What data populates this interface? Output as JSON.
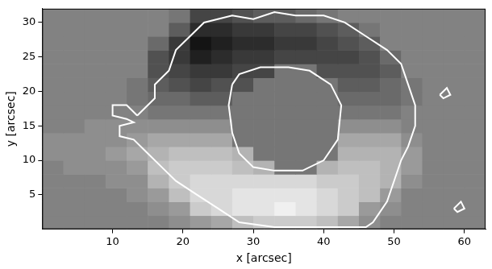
{
  "chart_data": {
    "type": "heatmap",
    "xlabel": "x [arcsec]",
    "ylabel": "y [arcsec]",
    "xlim": [
      0,
      63
    ],
    "ylim": [
      0,
      32
    ],
    "xticks": [
      10,
      20,
      30,
      40,
      50,
      60
    ],
    "yticks": [
      5,
      10,
      15,
      20,
      25,
      30
    ],
    "grid": false,
    "value_range": [
      -9,
      9
    ],
    "cells": [
      [
        0,
        0,
        0,
        0,
        0,
        0,
        1,
        2,
        3,
        5,
        6,
        6,
        6,
        5,
        3,
        1,
        0,
        0,
        0,
        0,
        0
      ],
      [
        0,
        0,
        0,
        0,
        0,
        1,
        2,
        6,
        7,
        8,
        8,
        9,
        8,
        7,
        6,
        2,
        1,
        0,
        0,
        0,
        0
      ],
      [
        0,
        0,
        0,
        0,
        1,
        2,
        5,
        7,
        7,
        8,
        8,
        8,
        8,
        7,
        6,
        5,
        2,
        0,
        0,
        0,
        0
      ],
      [
        0,
        0,
        0,
        1,
        1,
        4,
        6,
        7,
        7,
        7,
        7,
        7,
        7,
        6,
        6,
        5,
        4,
        1,
        0,
        0,
        0
      ],
      [
        0,
        1,
        1,
        1,
        2,
        5,
        6,
        6,
        6,
        5,
        4,
        -1,
        -1,
        4,
        5,
        5,
        4,
        2,
        0,
        0,
        0
      ],
      [
        1,
        1,
        1,
        2,
        3,
        4,
        5,
        5,
        5,
        4,
        -1,
        -1,
        -1,
        -1,
        4,
        4,
        4,
        2,
        0,
        0,
        0
      ],
      [
        1,
        1,
        1,
        1,
        2,
        3,
        3,
        3,
        3,
        -1,
        -1,
        -1,
        -1,
        -1,
        3,
        3,
        3,
        1,
        0,
        0,
        0
      ],
      [
        0,
        0,
        1,
        1,
        1,
        1,
        1,
        1,
        1,
        -1,
        -1,
        -1,
        -1,
        -1,
        1,
        1,
        1,
        0,
        0,
        0,
        0
      ],
      [
        0,
        0,
        0,
        0,
        0,
        -1,
        -1,
        -1,
        -1,
        -1,
        -1,
        -1,
        -1,
        -1,
        -1,
        -1,
        -1,
        0,
        0,
        0,
        0
      ],
      [
        0,
        0,
        0,
        0,
        -1,
        -2,
        -2,
        -3,
        -3,
        -1,
        -1,
        -1,
        -1,
        -1,
        -2,
        -2,
        -2,
        -1,
        0,
        0,
        0
      ],
      [
        0,
        0,
        0,
        0,
        -1,
        -3,
        -4,
        -5,
        -4,
        -4,
        -1,
        -1,
        -1,
        -1,
        -3,
        -3,
        -2,
        -1,
        0,
        0,
        0
      ],
      [
        0,
        0,
        0,
        0,
        0,
        -4,
        -5,
        -6,
        -6,
        -5,
        -5,
        -1,
        -1,
        -4,
        -4,
        -4,
        -3,
        0,
        0,
        0,
        0
      ],
      [
        0,
        0,
        0,
        0,
        0,
        -4,
        -6,
        -8,
        -7,
        -6,
        -6,
        -5,
        -5,
        -5,
        -5,
        -4,
        -2,
        0,
        0,
        0,
        0
      ],
      [
        0,
        0,
        0,
        0,
        0,
        -2,
        -6,
        -9,
        -8,
        -7,
        -7,
        -6,
        -6,
        -5,
        -4,
        -3,
        0,
        0,
        0,
        0,
        0
      ],
      [
        0,
        0,
        0,
        0,
        0,
        0,
        -3,
        -7,
        -7,
        -6,
        -6,
        -5,
        -5,
        -4,
        -3,
        -1,
        0,
        0,
        0,
        0,
        0
      ],
      [
        0,
        0,
        0,
        0,
        0,
        0,
        -1,
        -5,
        -5,
        -4,
        -3,
        -3,
        -2,
        -1,
        0,
        0,
        0,
        0,
        0,
        0,
        0
      ]
    ],
    "series": [
      {
        "type": "line",
        "color": "#ffffff",
        "x": [
          13.5,
          16,
          16,
          18,
          19,
          21,
          23,
          27,
          30,
          33,
          36,
          40,
          43,
          46,
          49,
          51,
          52,
          53,
          53,
          52,
          51,
          50,
          49,
          47,
          46,
          40,
          33,
          28,
          25,
          22,
          19,
          17,
          15,
          13,
          11,
          11,
          13,
          12,
          10,
          10,
          12,
          13.5
        ],
        "y": [
          16.5,
          19,
          21,
          23,
          26,
          28,
          30,
          31,
          30.5,
          31.5,
          31,
          31,
          30,
          28,
          26,
          24,
          21,
          18,
          15,
          12,
          10,
          7,
          4,
          1,
          0.3,
          0.3,
          0.3,
          1,
          3,
          5,
          7,
          9,
          11,
          13,
          13.5,
          15,
          15.5,
          16,
          16.5,
          18,
          18,
          16.5
        ]
      },
      {
        "type": "line",
        "color": "#ffffff",
        "x": [
          27,
          28,
          31,
          35,
          38,
          41,
          42.5,
          42,
          40,
          37,
          33,
          30,
          28,
          27,
          26.5,
          27
        ],
        "y": [
          21,
          22.5,
          23.5,
          23.5,
          23,
          21,
          18,
          13,
          10,
          8.5,
          8.5,
          9,
          11,
          14,
          18,
          21
        ]
      },
      {
        "type": "line",
        "color": "#ffffff",
        "x": [
          56.5,
          57.5,
          58,
          57,
          56.5
        ],
        "y": [
          19.5,
          20.5,
          19.5,
          19,
          19.5
        ]
      },
      {
        "type": "line",
        "color": "#ffffff",
        "x": [
          58.5,
          59.5,
          60,
          59,
          58.5
        ],
        "y": [
          3,
          4,
          3,
          2.5,
          3
        ]
      }
    ]
  }
}
